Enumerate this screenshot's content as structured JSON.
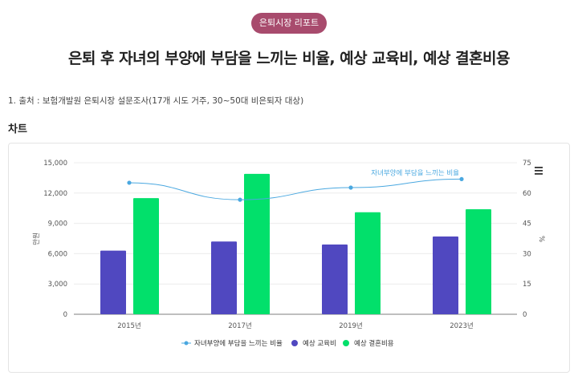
{
  "badge": "은퇴시장 리포트",
  "headline": "은퇴 후 자녀의 부양에 부담을 느끼는 비율, 예상 교육비, 예상 결혼비용",
  "source": "1. 출처 : 보험개발원 은퇴시장 설문조사(17개 시도 거주, 30~50대 비은퇴자 대상)",
  "section_title": "차트",
  "chart_data": {
    "type": "bar",
    "categories": [
      "2015년",
      "2017년",
      "2019년",
      "2023년"
    ],
    "series": [
      {
        "name": "자녀부양에 부담을 느끼는 비율",
        "type": "line",
        "axis": "right",
        "color": "#4aa8e0",
        "values": [
          65.1,
          56.7,
          62.7,
          66.9
        ]
      },
      {
        "name": "예상 교육비",
        "type": "bar",
        "axis": "left",
        "color": "#5048c0",
        "values": [
          6300,
          7200,
          6900,
          7700
        ]
      },
      {
        "name": "예상 결혼비용",
        "type": "bar",
        "axis": "left",
        "color": "#02e06b",
        "values": [
          11500,
          13900,
          10100,
          10400
        ]
      }
    ],
    "ylabel": "만원",
    "y2label": "%",
    "ylim": [
      0,
      15000
    ],
    "y2lim": [
      0,
      75
    ],
    "yticks": [
      "0",
      "3,000",
      "6,000",
      "9,000",
      "12,000",
      "15,000"
    ],
    "y2ticks": [
      "0",
      "15",
      "30",
      "45",
      "60",
      "75"
    ],
    "line_annotation": "자녀부양에 부담을 느끼는 비율",
    "legend_position": "bottom",
    "grid": true
  },
  "menu_icon": "hamburger-menu-icon"
}
